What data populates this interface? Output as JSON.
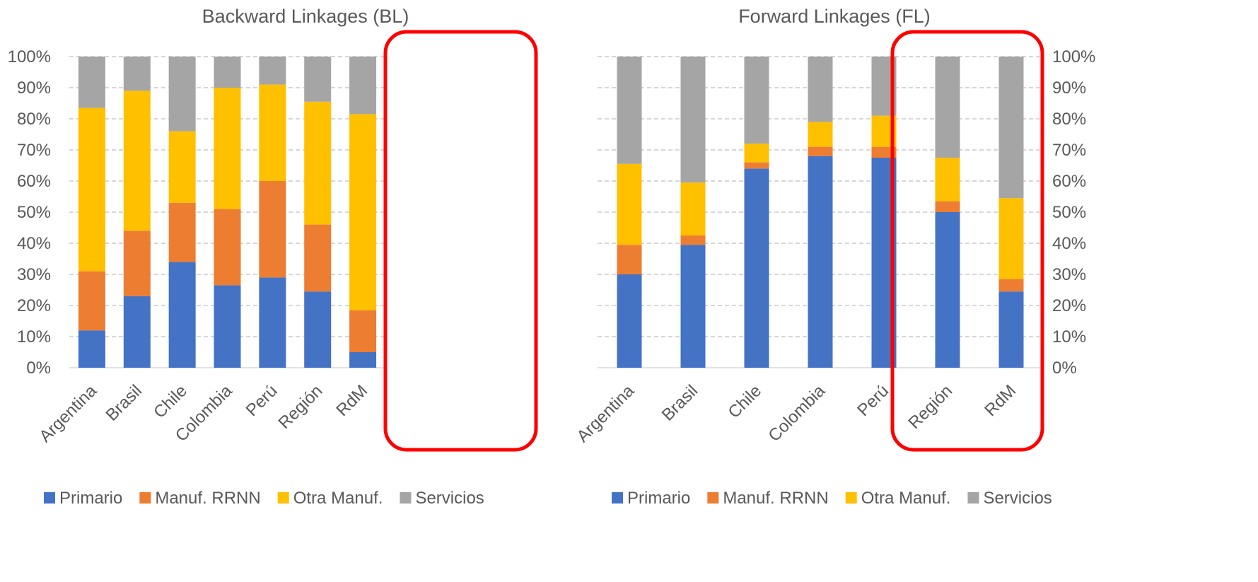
{
  "colors": {
    "Primario": "#4472C4",
    "Manuf. RRNN": "#ED7D31",
    "Otra Manuf.": "#FFC000",
    "Servicios": "#A5A5A5",
    "highlight": "#FF0000",
    "grid": "#BFBFBF",
    "text": "#595959"
  },
  "chart_data": [
    {
      "type": "bar",
      "stacked": true,
      "title": "Backward Linkages (BL)",
      "categories": [
        "Argentina",
        "Brasil",
        "Chile",
        "Colombia",
        "Perú",
        "Región",
        "RdM"
      ],
      "series": [
        {
          "name": "Primario",
          "values": [
            12,
            23,
            34,
            26.5,
            29,
            24.5,
            5
          ]
        },
        {
          "name": "Manuf. RRNN",
          "values": [
            19,
            21,
            19,
            24.5,
            31,
            21.5,
            13.5
          ]
        },
        {
          "name": "Otra Manuf.",
          "values": [
            52.5,
            45,
            23,
            39,
            31,
            39.5,
            63
          ]
        },
        {
          "name": "Servicios",
          "values": [
            16.5,
            11,
            24,
            10,
            9,
            14.5,
            18.5
          ]
        }
      ],
      "yticks": [
        "0%",
        "10%",
        "20%",
        "30%",
        "40%",
        "50%",
        "60%",
        "70%",
        "80%",
        "90%",
        "100%"
      ],
      "ylim": [
        0,
        100
      ],
      "y_axis_side": "left",
      "grid": true,
      "highlighted_categories": [
        "Región",
        "RdM"
      ],
      "legend_position": "bottom"
    },
    {
      "type": "bar",
      "stacked": true,
      "title": "Forward Linkages (FL)",
      "categories": [
        "Argentina",
        "Brasil",
        "Chile",
        "Colombia",
        "Perú",
        "Región",
        "RdM"
      ],
      "series": [
        {
          "name": "Primario",
          "values": [
            30,
            39.5,
            64,
            68,
            67.5,
            50,
            24.5
          ]
        },
        {
          "name": "Manuf. RRNN",
          "values": [
            9.5,
            3,
            2,
            3,
            3.5,
            3.5,
            4
          ]
        },
        {
          "name": "Otra Manuf.",
          "values": [
            26,
            17,
            6,
            8,
            10,
            14,
            26
          ]
        },
        {
          "name": "Servicios",
          "values": [
            34.5,
            40.5,
            28,
            21,
            19,
            32.5,
            45.5
          ]
        }
      ],
      "yticks": [
        "0%",
        "10%",
        "20%",
        "30%",
        "40%",
        "50%",
        "60%",
        "70%",
        "80%",
        "90%",
        "100%"
      ],
      "ylim": [
        0,
        100
      ],
      "y_axis_side": "right",
      "grid": true,
      "highlighted_categories": [
        "Región",
        "RdM"
      ],
      "legend_position": "bottom"
    }
  ]
}
